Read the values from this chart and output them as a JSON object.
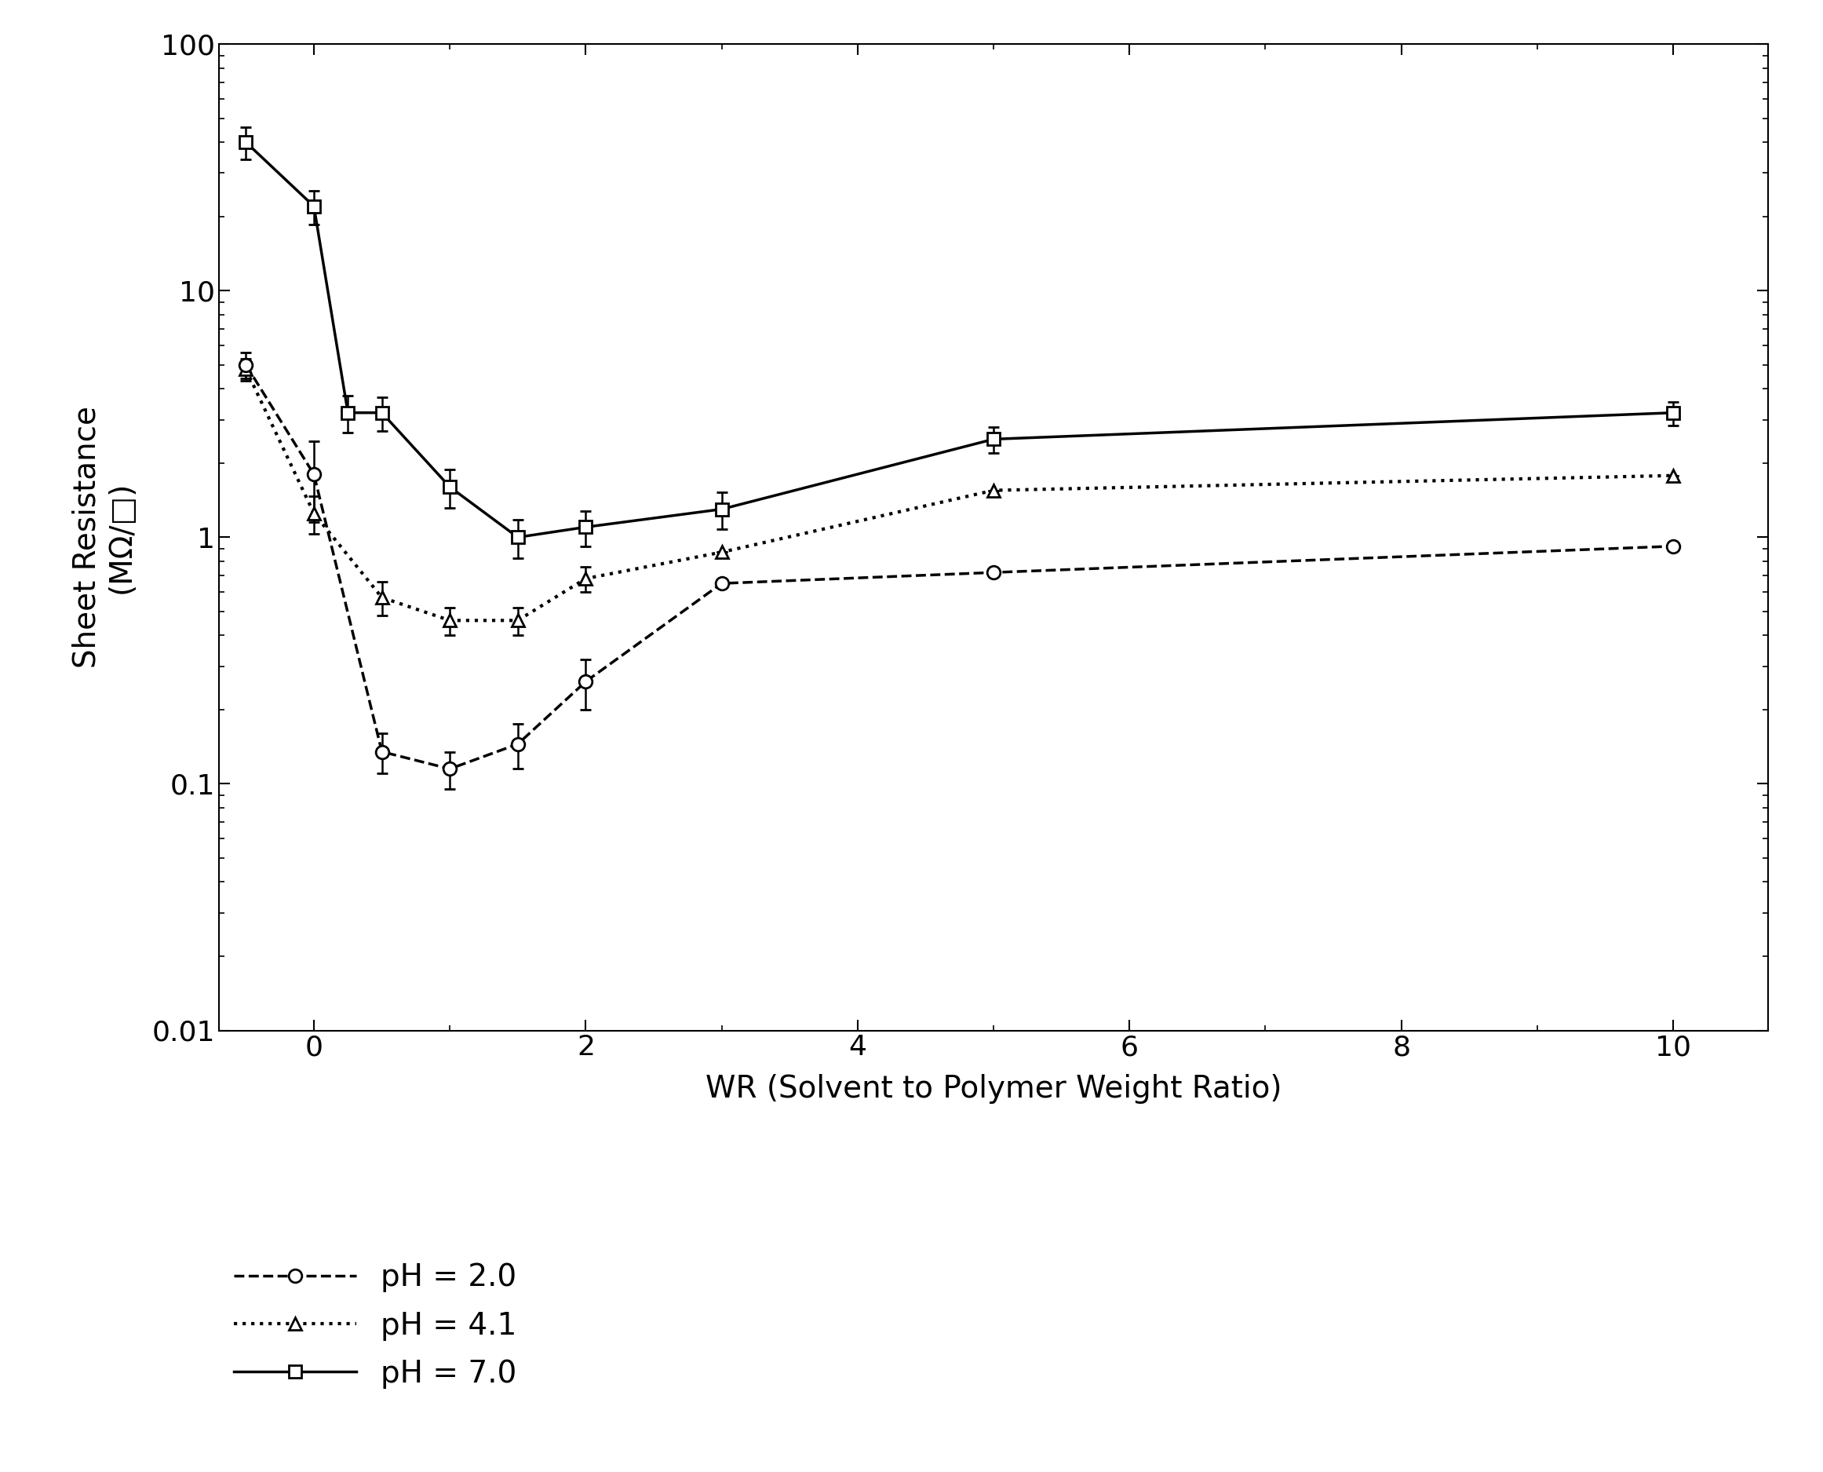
{
  "xlabel": "WR (Solvent to Polymer Weight Ratio)",
  "ylabel": "Sheet Resistance\n(MΩ/□)",
  "xlim": [
    -0.7,
    10.7
  ],
  "ylim": [
    0.01,
    100
  ],
  "ph2_x": [
    -0.5,
    0.0,
    0.5,
    1.0,
    1.5,
    2.0,
    3.0,
    5.0,
    10.0
  ],
  "ph2_y": [
    5.0,
    1.8,
    0.135,
    0.115,
    0.145,
    0.26,
    0.65,
    0.72,
    0.92
  ],
  "ph2_yerr_lo": [
    0.6,
    0.65,
    0.025,
    0.02,
    0.03,
    0.06,
    0.0,
    0.0,
    0.0
  ],
  "ph2_yerr_hi": [
    0.6,
    0.65,
    0.025,
    0.02,
    0.03,
    0.06,
    0.0,
    0.0,
    0.0
  ],
  "ph4_x": [
    -0.5,
    0.0,
    0.5,
    1.0,
    1.5,
    2.0,
    3.0,
    5.0,
    10.0
  ],
  "ph4_y": [
    4.8,
    1.25,
    0.57,
    0.46,
    0.46,
    0.68,
    0.87,
    1.55,
    1.78
  ],
  "ph4_yerr_lo": [
    0.5,
    0.22,
    0.09,
    0.06,
    0.06,
    0.08,
    0.0,
    0.0,
    0.0
  ],
  "ph4_yerr_hi": [
    0.5,
    0.22,
    0.09,
    0.06,
    0.06,
    0.08,
    0.0,
    0.0,
    0.0
  ],
  "ph7_x": [
    -0.5,
    0.0,
    0.25,
    0.5,
    1.0,
    1.5,
    2.0,
    3.0,
    5.0,
    10.0
  ],
  "ph7_y": [
    40.0,
    22.0,
    3.2,
    3.2,
    1.6,
    1.0,
    1.1,
    1.3,
    2.5,
    3.2
  ],
  "ph7_yerr_lo": [
    6.0,
    3.5,
    0.55,
    0.5,
    0.28,
    0.18,
    0.18,
    0.22,
    0.3,
    0.35
  ],
  "ph7_yerr_hi": [
    6.0,
    3.5,
    0.55,
    0.5,
    0.28,
    0.18,
    0.18,
    0.22,
    0.3,
    0.35
  ],
  "legend_labels": [
    "pH = 2.0",
    "pH = 4.1",
    "pH = 7.0"
  ],
  "background_color": "#ffffff",
  "text_color": "#000000",
  "line_color": "#000000",
  "fontsize_labels": 28,
  "fontsize_ticks": 26,
  "fontsize_legend": 28,
  "xticks": [
    0,
    2,
    4,
    6,
    8,
    10
  ],
  "major_yticks": [
    0.01,
    0.1,
    1,
    10,
    100
  ],
  "major_ytick_labels": [
    "0.01",
    "0.1",
    "1",
    "10",
    "100"
  ]
}
